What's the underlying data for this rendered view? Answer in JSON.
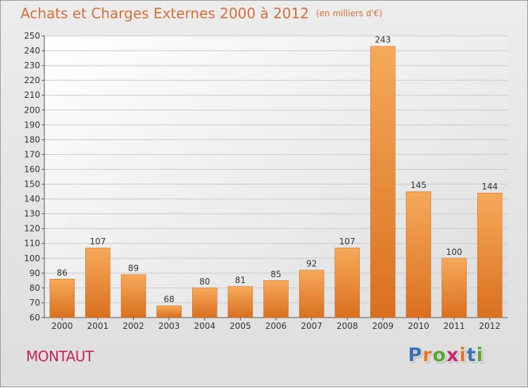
{
  "header": {
    "title": "Achats et Charges Externes 2000 à 2012",
    "units": "(en milliers d'€)"
  },
  "footer": {
    "commune": "MONTAUT",
    "logo_text": "Proxiti",
    "logo_colors": [
      "#3b6fb6",
      "#e8742a",
      "#5aa532",
      "#c9266e",
      "#e8742a",
      "#3b6fb6",
      "#5aa532"
    ]
  },
  "colors": {
    "title": "#d9703a",
    "commune": "#c8245a",
    "bar_top": "#f6a95a",
    "bar_bottom": "#d9701f"
  },
  "chart_data": {
    "type": "bar",
    "title": "Achats et Charges Externes 2000 à 2012",
    "categories": [
      "2000",
      "2001",
      "2002",
      "2003",
      "2004",
      "2005",
      "2006",
      "2007",
      "2008",
      "2009",
      "2010",
      "2011",
      "2012"
    ],
    "values": [
      86,
      107,
      89,
      68,
      80,
      81,
      85,
      92,
      107,
      243,
      145,
      100,
      144
    ],
    "ylim": [
      60,
      250
    ],
    "yticks": [
      60,
      70,
      80,
      90,
      100,
      110,
      120,
      130,
      140,
      150,
      160,
      170,
      180,
      190,
      200,
      210,
      220,
      230,
      240,
      250
    ],
    "grid": true,
    "data_labels": true
  }
}
